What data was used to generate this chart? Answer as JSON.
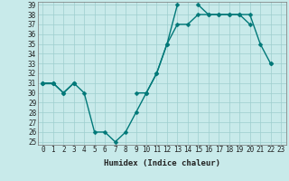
{
  "xlabel": "Humidex (Indice chaleur)",
  "bg_color": "#c8eaea",
  "grid_color": "#9ecece",
  "line_color": "#007878",
  "x": [
    0,
    1,
    2,
    3,
    4,
    5,
    6,
    7,
    8,
    9,
    10,
    11,
    12,
    13,
    14,
    15,
    16,
    17,
    18,
    19,
    20,
    21,
    22,
    23
  ],
  "line1": [
    31,
    31,
    30,
    31,
    30,
    26,
    26,
    25,
    26,
    28,
    30,
    32,
    35,
    39,
    null,
    null,
    null,
    null,
    null,
    null,
    null,
    null,
    null,
    null
  ],
  "line2": [
    31,
    31,
    30,
    31,
    null,
    null,
    null,
    null,
    null,
    30,
    30,
    32,
    35,
    37,
    37,
    38,
    38,
    38,
    38,
    38,
    38,
    35,
    33,
    null
  ],
  "line3": [
    31,
    31,
    null,
    31,
    null,
    null,
    null,
    null,
    null,
    null,
    null,
    null,
    null,
    null,
    null,
    39,
    38,
    38,
    38,
    38,
    37,
    null,
    33,
    null
  ],
  "ylim": [
    25,
    39
  ],
  "xlim": [
    -0.5,
    23.5
  ],
  "yticks": [
    25,
    26,
    27,
    28,
    29,
    30,
    31,
    32,
    33,
    34,
    35,
    36,
    37,
    38,
    39
  ],
  "xticks": [
    0,
    1,
    2,
    3,
    4,
    5,
    6,
    7,
    8,
    9,
    10,
    11,
    12,
    13,
    14,
    15,
    16,
    17,
    18,
    19,
    20,
    21,
    22,
    23
  ],
  "tick_fontsize": 5.5,
  "xlabel_fontsize": 6.5,
  "linewidth": 1.0,
  "markersize": 2.5
}
